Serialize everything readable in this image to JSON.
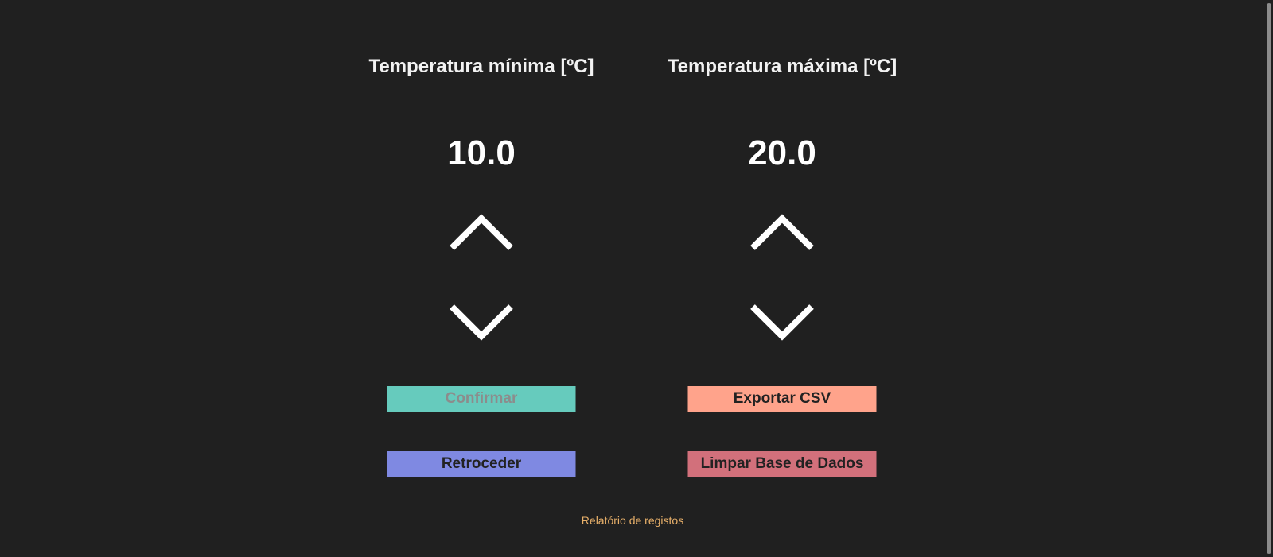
{
  "min_temp": {
    "title": "Temperatura mínima [ºC]",
    "value": "10.0"
  },
  "max_temp": {
    "title": "Temperatura máxima [ºC]",
    "value": "20.0"
  },
  "buttons": {
    "confirm": "Confirmar",
    "back": "Retroceder",
    "export_csv": "Exportar CSV",
    "clear_db": "Limpar Base de Dados"
  },
  "footer": {
    "report_link": "Relatório de registos"
  },
  "colors": {
    "background": "#202020",
    "confirm": "#66cbbd",
    "back": "#7f89e2",
    "export_csv": "#ffa38b",
    "clear_db": "#d2707b",
    "link": "#e8b06a"
  },
  "icons": {
    "increase": "chevron-up-icon",
    "decrease": "chevron-down-icon"
  }
}
